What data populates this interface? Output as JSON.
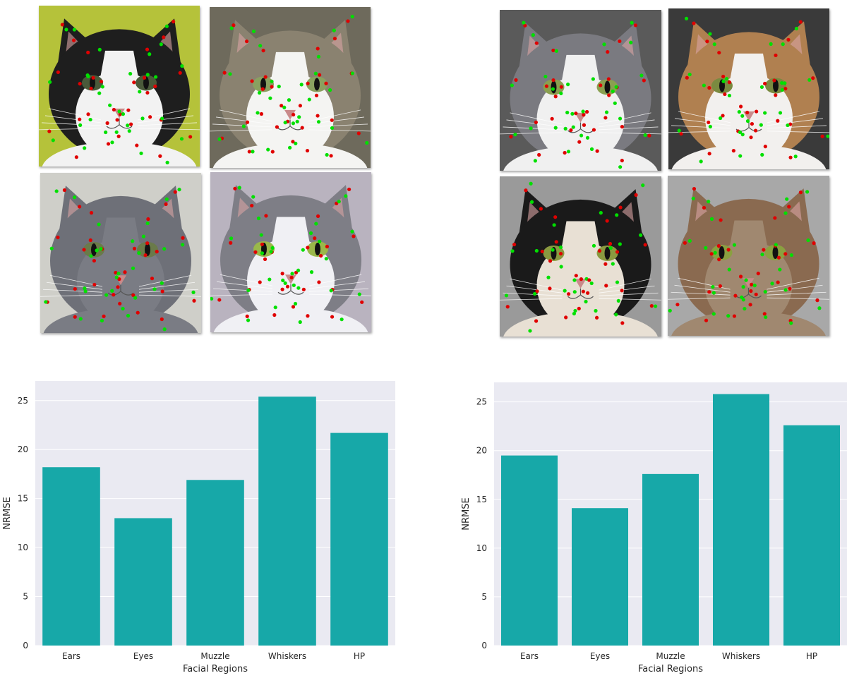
{
  "photo_panels": [
    {
      "tiles": [
        {
          "fur": "#1e1e1e",
          "face": "#f2f2f2",
          "bg": "#b5c23a",
          "eye": "#4a5a3a"
        },
        {
          "fur": "#8a8270",
          "face": "#f4f4f2",
          "bg": "#6e6a5c",
          "eye": "#8aa060"
        },
        {
          "fur": "#6e7078",
          "face": "#7a7c84",
          "bg": "#cfcfc9",
          "eye": "#6a7a4a"
        },
        {
          "fur": "#7e7e86",
          "face": "#f0f0f4",
          "bg": "#b9b3bf",
          "eye": "#9ab84a"
        }
      ]
    },
    {
      "tiles": [
        {
          "fur": "#7a7a80",
          "face": "#f0f0f0",
          "bg": "#5a5a5a",
          "eye": "#8aa050"
        },
        {
          "fur": "#b08050",
          "face": "#f2f0ee",
          "bg": "#3a3a3a",
          "eye": "#7a8a40"
        },
        {
          "fur": "#1a1a1a",
          "face": "#e8e0d4",
          "bg": "#9a9a9a",
          "eye": "#8a9a40"
        },
        {
          "fur": "#8a6a50",
          "face": "#a08870",
          "bg": "#a8a8a8",
          "eye": "#8aa040"
        }
      ]
    }
  ],
  "landmark_colors": {
    "predicted": "#00e000",
    "ground_truth": "#e00000"
  },
  "chart_data": [
    {
      "type": "bar",
      "categories": [
        "Ears",
        "Eyes",
        "Muzzle",
        "Whiskers",
        "HP"
      ],
      "values": [
        18.2,
        13.0,
        16.9,
        25.4,
        21.7
      ],
      "xlabel": "Facial Regions",
      "ylabel": "NRMSE",
      "ylim": [
        0,
        27
      ],
      "yticks": [
        0,
        5,
        10,
        15,
        20,
        25
      ],
      "grid": true,
      "bar_color": "#17a8a8",
      "background": "#eaeaf2"
    },
    {
      "type": "bar",
      "categories": [
        "Ears",
        "Eyes",
        "Muzzle",
        "Whiskers",
        "HP"
      ],
      "values": [
        19.5,
        14.1,
        17.6,
        25.8,
        22.6
      ],
      "xlabel": "Facial Regions",
      "ylabel": "NRMSE",
      "ylim": [
        0,
        27
      ],
      "yticks": [
        0,
        5,
        10,
        15,
        20,
        25
      ],
      "grid": true,
      "bar_color": "#17a8a8",
      "background": "#eaeaf2"
    }
  ]
}
